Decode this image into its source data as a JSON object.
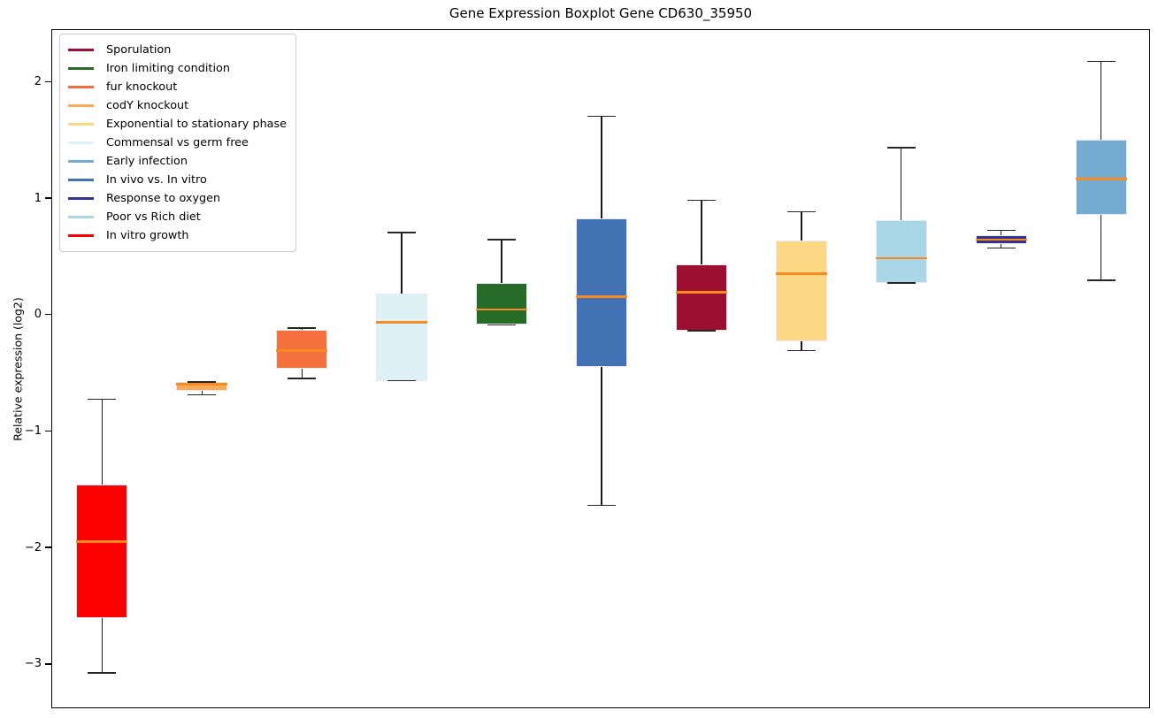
{
  "chart_data": {
    "type": "box",
    "title": "Gene Expression Boxplot Gene CD630_35950",
    "xlabel": "",
    "ylabel": "Relative expression (log2)",
    "ylim": [
      -3.38,
      2.45
    ],
    "yticks": [
      2,
      1,
      0,
      -1,
      -2,
      -3
    ],
    "ytick_labels": [
      "2",
      "1",
      "0",
      "−1",
      "−2",
      "−3"
    ],
    "grid": false,
    "legend_position": "upper-left",
    "median_color": "#f78b1f",
    "box_edge_color": "#e9e9f6",
    "whisker_color": "#1a1a1a",
    "legend": [
      {
        "label": "Sporulation",
        "color": "#9d0f30"
      },
      {
        "label": "Iron limiting condition",
        "color": "#276b29"
      },
      {
        "label": "fur knockout",
        "color": "#f4713d"
      },
      {
        "label": "codY knockout",
        "color": "#fbab55"
      },
      {
        "label": "Exponential to stationary phase",
        "color": "#fcd885"
      },
      {
        "label": "Commensal vs germ free",
        "color": "#def1f7"
      },
      {
        "label": "Early infection",
        "color": "#74abd0"
      },
      {
        "label": "In vivo vs. In vitro",
        "color": "#4272b4"
      },
      {
        "label": "Response to oxygen",
        "color": "#32338f"
      },
      {
        "label": "Poor vs Rich diet",
        "color": "#a9d7e8"
      },
      {
        "label": "In vitro growth",
        "color": "#fd0100"
      }
    ],
    "groups": [
      {
        "name": "In vitro growth",
        "color": "#fd0100",
        "whisker_low": -3.07,
        "q1": -2.6,
        "median": -1.94,
        "q3": -1.45,
        "whisker_high": -0.72
      },
      {
        "name": "codY knockout",
        "color": "#fbab55",
        "whisker_low": -0.68,
        "q1": -0.65,
        "median": -0.59,
        "q3": -0.57,
        "whisker_high": -0.57
      },
      {
        "name": "fur knockout",
        "color": "#f4713d",
        "whisker_low": -0.54,
        "q1": -0.46,
        "median": -0.3,
        "q3": -0.12,
        "whisker_high": -0.11
      },
      {
        "name": "Commensal vs germ free",
        "color": "#def1f7",
        "whisker_low": -0.56,
        "q1": -0.56,
        "median": -0.06,
        "q3": 0.19,
        "whisker_high": 0.71
      },
      {
        "name": "Iron limiting condition",
        "color": "#276b29",
        "whisker_low": -0.08,
        "q1": -0.08,
        "median": 0.05,
        "q3": 0.28,
        "whisker_high": 0.65
      },
      {
        "name": "In vivo vs. In vitro",
        "color": "#4272b4",
        "whisker_low": -1.63,
        "q1": -0.44,
        "median": 0.16,
        "q3": 0.83,
        "whisker_high": 1.71
      },
      {
        "name": "Sporulation",
        "color": "#9d0f30",
        "whisker_low": -0.13,
        "q1": -0.13,
        "median": 0.2,
        "q3": 0.44,
        "whisker_high": 0.99
      },
      {
        "name": "Exponential to stationary phase",
        "color": "#fcd885",
        "whisker_low": -0.3,
        "q1": -0.22,
        "median": 0.36,
        "q3": 0.64,
        "whisker_high": 0.89
      },
      {
        "name": "Poor vs Rich diet",
        "color": "#a9d7e8",
        "whisker_low": 0.28,
        "q1": 0.28,
        "median": 0.49,
        "q3": 0.82,
        "whisker_high": 1.44
      },
      {
        "name": "Response to oxygen",
        "color": "#32338f",
        "whisker_low": 0.58,
        "q1": 0.61,
        "median": 0.65,
        "q3": 0.69,
        "whisker_high": 0.73
      },
      {
        "name": "Early infection",
        "color": "#74abd0",
        "whisker_low": 0.3,
        "q1": 0.86,
        "median": 1.17,
        "q3": 1.51,
        "whisker_high": 2.18
      }
    ]
  }
}
